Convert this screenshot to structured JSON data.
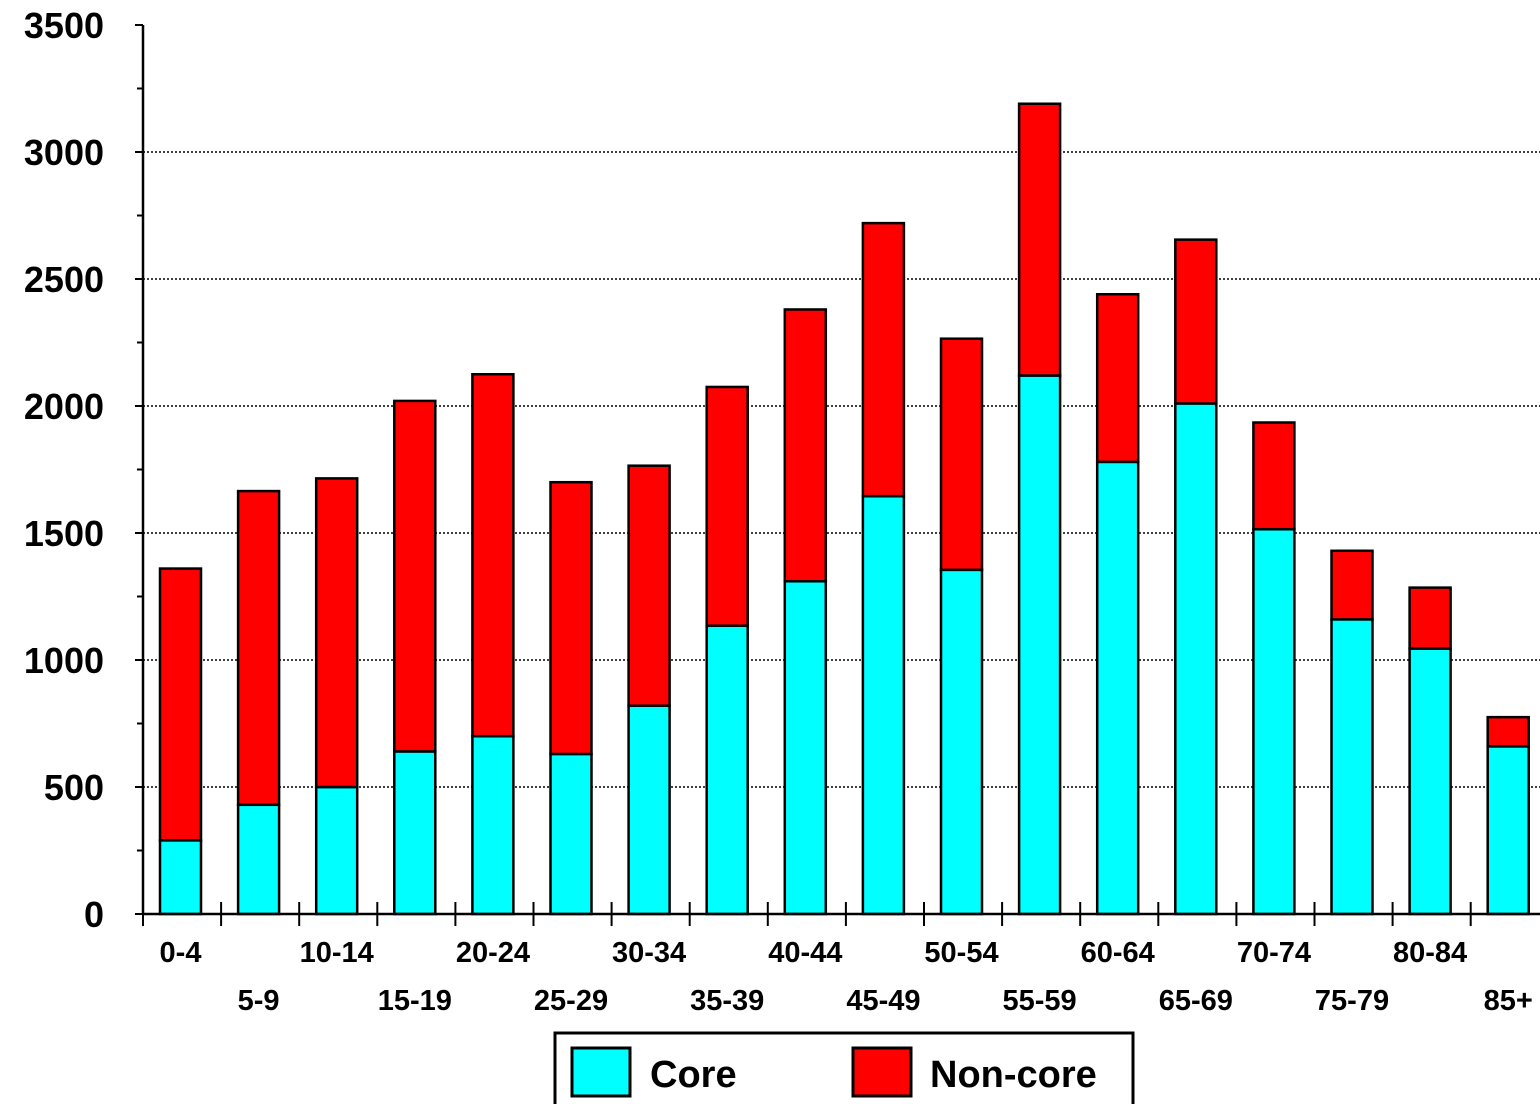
{
  "chart_data": {
    "type": "bar",
    "stacked": true,
    "categories": [
      "0-4",
      "5-9",
      "10-14",
      "15-19",
      "20-24",
      "25-29",
      "30-34",
      "35-39",
      "40-44",
      "45-49",
      "50-54",
      "55-59",
      "60-64",
      "65-69",
      "70-74",
      "75-79",
      "80-84",
      "85+"
    ],
    "series": [
      {
        "name": "Core",
        "color": "#00FFFF",
        "values": [
          290,
          430,
          500,
          640,
          700,
          630,
          820,
          1135,
          1310,
          1645,
          1355,
          2120,
          1780,
          2010,
          1515,
          1160,
          1045,
          660
        ]
      },
      {
        "name": "Non-core",
        "color": "#FF0000",
        "values": [
          1070,
          1235,
          1215,
          1380,
          1425,
          1070,
          945,
          940,
          1070,
          1075,
          910,
          1070,
          660,
          645,
          420,
          270,
          240,
          115
        ]
      }
    ],
    "yticks": [
      "0",
      "500",
      "1000",
      "1500",
      "2000",
      "2500",
      "3000",
      "3500"
    ],
    "ylim": [
      0,
      3500
    ],
    "ygrid": true,
    "grid_style": "dotted",
    "legend_position": "bottom-center",
    "xlabel": "",
    "ylabel": "",
    "title": ""
  }
}
